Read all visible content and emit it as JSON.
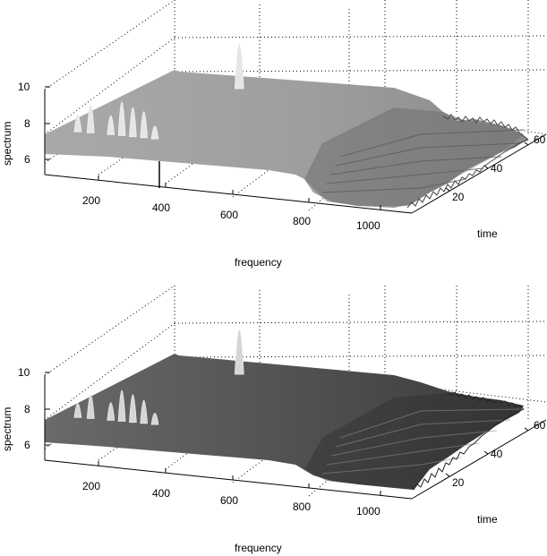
{
  "chart_data": [
    {
      "type": "surface",
      "xlabel": "frequency",
      "ylabel": "time",
      "zlabel": "spectrum",
      "x_ticks": [
        "200",
        "400",
        "600",
        "800",
        "1000"
      ],
      "y_ticks": [
        "20",
        "40",
        "60"
      ],
      "z_ticks": [
        "6",
        "8",
        "10"
      ],
      "xlim": [
        50,
        1050
      ],
      "ylim": [
        0,
        64
      ],
      "zlim": [
        5,
        11
      ],
      "grid": true,
      "colormap": "gray",
      "baseline_profile": {
        "frequency": [
          50,
          200,
          400,
          600,
          700,
          800,
          850,
          900,
          1000,
          1050
        ],
        "spectrum": [
          6.3,
          6.4,
          6.45,
          6.5,
          6.45,
          6.25,
          6.0,
          5.7,
          5.6,
          5.6
        ]
      },
      "peaks": [
        {
          "frequency": 140,
          "height": 7.5
        },
        {
          "frequency": 175,
          "height": 8.3
        },
        {
          "frequency": 230,
          "height": 7.7
        },
        {
          "frequency": 260,
          "height": 8.7
        },
        {
          "frequency": 290,
          "height": 8.4
        },
        {
          "frequency": 320,
          "height": 8.2
        },
        {
          "frequency": 350,
          "height": 7.3
        },
        {
          "frequency": 580,
          "height": 9.5
        }
      ]
    },
    {
      "type": "surface",
      "xlabel": "frequency",
      "ylabel": "time",
      "zlabel": "spectrum",
      "x_ticks": [
        "200",
        "400",
        "600",
        "800",
        "1000"
      ],
      "y_ticks": [
        "20",
        "40",
        "60"
      ],
      "z_ticks": [
        "6",
        "8",
        "10"
      ],
      "xlim": [
        50,
        1050
      ],
      "ylim": [
        0,
        64
      ],
      "zlim": [
        5,
        11
      ],
      "grid": true,
      "colormap": "gray",
      "baseline_profile": {
        "frequency": [
          50,
          200,
          400,
          600,
          700,
          800,
          850,
          900,
          1000,
          1050
        ],
        "spectrum": [
          6.3,
          6.4,
          6.45,
          6.5,
          6.45,
          6.3,
          6.1,
          6.0,
          5.9,
          5.9
        ]
      },
      "peaks": [
        {
          "frequency": 140,
          "height": 7.3
        },
        {
          "frequency": 175,
          "height": 8.0
        },
        {
          "frequency": 230,
          "height": 7.6
        },
        {
          "frequency": 260,
          "height": 8.5
        },
        {
          "frequency": 290,
          "height": 8.3
        },
        {
          "frequency": 320,
          "height": 8.0
        },
        {
          "frequency": 350,
          "height": 7.2
        },
        {
          "frequency": 580,
          "height": 9.5
        }
      ]
    }
  ]
}
